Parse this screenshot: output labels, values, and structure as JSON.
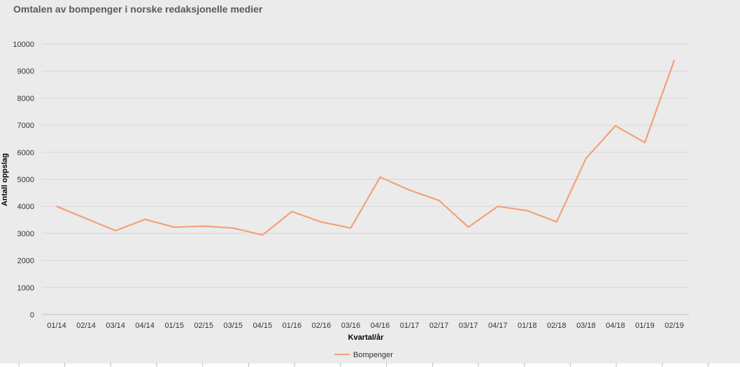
{
  "chart_data": {
    "type": "line",
    "title": "Omtalen av bompenger i norske redaksjonelle medier",
    "xlabel": "Kvartal/år",
    "ylabel": "Antall oppslag",
    "categories": [
      "01/14",
      "02/14",
      "03/14",
      "04/14",
      "01/15",
      "02/15",
      "03/15",
      "04/15",
      "01/16",
      "02/16",
      "03/16",
      "04/16",
      "01/17",
      "02/17",
      "03/17",
      "04/17",
      "01/18",
      "02/18",
      "03/18",
      "04/18",
      "01/19",
      "02/19"
    ],
    "series": [
      {
        "name": "Bompenger",
        "color": "#f4a07b",
        "values": [
          4000,
          3550,
          3100,
          3520,
          3230,
          3270,
          3200,
          2940,
          3810,
          3420,
          3200,
          5080,
          4600,
          4220,
          3230,
          4000,
          3840,
          3430,
          5770,
          6980,
          6360,
          9400
        ]
      }
    ],
    "ylim": [
      0,
      10000
    ],
    "yticks": [
      0,
      1000,
      2000,
      3000,
      4000,
      5000,
      6000,
      7000,
      8000,
      9000,
      10000
    ],
    "grid": true,
    "legend": "bottom-center"
  }
}
